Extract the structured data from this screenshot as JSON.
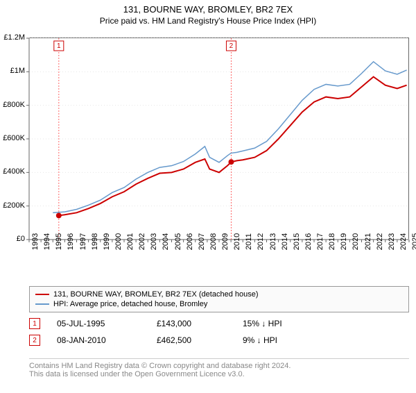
{
  "title": "131, BOURNE WAY, BROMLEY, BR2 7EX",
  "subtitle": "Price paid vs. HM Land Registry's House Price Index (HPI)",
  "chart": {
    "type": "line",
    "background_color": "#ffffff",
    "grid_color": "#e6e6e6",
    "grid_dash": "1 3",
    "axis_color": "#666666",
    "tick_fontsize": 11,
    "x_axis": {
      "min": 1993,
      "max": 2025,
      "ticks": [
        1993,
        1994,
        1995,
        1996,
        1997,
        1998,
        1999,
        2000,
        2001,
        2002,
        2003,
        2004,
        2005,
        2006,
        2007,
        2008,
        2009,
        2010,
        2011,
        2012,
        2013,
        2014,
        2015,
        2016,
        2017,
        2018,
        2019,
        2020,
        2021,
        2022,
        2023,
        2024,
        2025
      ],
      "label_rotation": -90
    },
    "y_axis": {
      "min": 0,
      "max": 1200000,
      "ticks": [
        0,
        200000,
        400000,
        600000,
        800000,
        1000000,
        1200000
      ],
      "labels": [
        "£0",
        "£200K",
        "£400K",
        "£600K",
        "£800K",
        "£1M",
        "£1.2M"
      ]
    },
    "series": [
      {
        "name": "131, BOURNE WAY, BROMLEY, BR2 7EX (detached house)",
        "color": "#cc0000",
        "line_width": 2,
        "data": [
          [
            1995.5,
            143000
          ],
          [
            1996,
            148000
          ],
          [
            1997,
            160000
          ],
          [
            1998,
            185000
          ],
          [
            1999,
            215000
          ],
          [
            2000,
            255000
          ],
          [
            2001,
            285000
          ],
          [
            2002,
            330000
          ],
          [
            2003,
            365000
          ],
          [
            2004,
            395000
          ],
          [
            2005,
            400000
          ],
          [
            2006,
            420000
          ],
          [
            2007,
            460000
          ],
          [
            2007.8,
            480000
          ],
          [
            2008.2,
            420000
          ],
          [
            2009,
            400000
          ],
          [
            2009.7,
            440000
          ],
          [
            2010.02,
            462500
          ],
          [
            2010.5,
            470000
          ],
          [
            2011,
            475000
          ],
          [
            2012,
            490000
          ],
          [
            2013,
            530000
          ],
          [
            2014,
            600000
          ],
          [
            2015,
            680000
          ],
          [
            2016,
            760000
          ],
          [
            2017,
            820000
          ],
          [
            2018,
            850000
          ],
          [
            2019,
            840000
          ],
          [
            2020,
            850000
          ],
          [
            2021,
            910000
          ],
          [
            2022,
            970000
          ],
          [
            2023,
            920000
          ],
          [
            2024,
            900000
          ],
          [
            2024.8,
            920000
          ]
        ]
      },
      {
        "name": "HPI: Average price, detached house, Bromley",
        "color": "#6699cc",
        "line_width": 1.5,
        "data": [
          [
            1995,
            160000
          ],
          [
            1996,
            165000
          ],
          [
            1997,
            180000
          ],
          [
            1998,
            205000
          ],
          [
            1999,
            235000
          ],
          [
            2000,
            280000
          ],
          [
            2001,
            310000
          ],
          [
            2002,
            360000
          ],
          [
            2003,
            400000
          ],
          [
            2004,
            430000
          ],
          [
            2005,
            440000
          ],
          [
            2006,
            465000
          ],
          [
            2007,
            510000
          ],
          [
            2007.8,
            555000
          ],
          [
            2008.2,
            490000
          ],
          [
            2009,
            460000
          ],
          [
            2009.7,
            500000
          ],
          [
            2010,
            515000
          ],
          [
            2010.5,
            520000
          ],
          [
            2011,
            528000
          ],
          [
            2012,
            545000
          ],
          [
            2013,
            585000
          ],
          [
            2014,
            660000
          ],
          [
            2015,
            745000
          ],
          [
            2016,
            830000
          ],
          [
            2017,
            895000
          ],
          [
            2018,
            925000
          ],
          [
            2019,
            915000
          ],
          [
            2020,
            925000
          ],
          [
            2021,
            990000
          ],
          [
            2022,
            1060000
          ],
          [
            2023,
            1005000
          ],
          [
            2024,
            985000
          ],
          [
            2024.8,
            1010000
          ]
        ]
      }
    ],
    "point_markers": [
      {
        "x": 1995.5,
        "y": 143000,
        "color": "#cc0000",
        "radius": 4
      },
      {
        "x": 2010.02,
        "y": 462500,
        "color": "#cc0000",
        "radius": 4
      }
    ],
    "vertical_markers": [
      {
        "x": 1995.5,
        "label": "1",
        "color": "#ff6666",
        "dash": "2 2"
      },
      {
        "x": 2010.02,
        "label": "2",
        "color": "#ff6666",
        "dash": "2 2"
      }
    ]
  },
  "legend": {
    "border_color": "#999999",
    "background_color": "#fafafa"
  },
  "sale_markers": [
    {
      "badge": "1",
      "date": "05-JUL-1995",
      "price": "£143,000",
      "delta": "15% ↓ HPI"
    },
    {
      "badge": "2",
      "date": "08-JAN-2010",
      "price": "£462,500",
      "delta": "9% ↓ HPI"
    }
  ],
  "footer": {
    "line1": "Contains HM Land Registry data © Crown copyright and database right 2024.",
    "line2": "This data is licensed under the Open Government Licence v3.0."
  }
}
